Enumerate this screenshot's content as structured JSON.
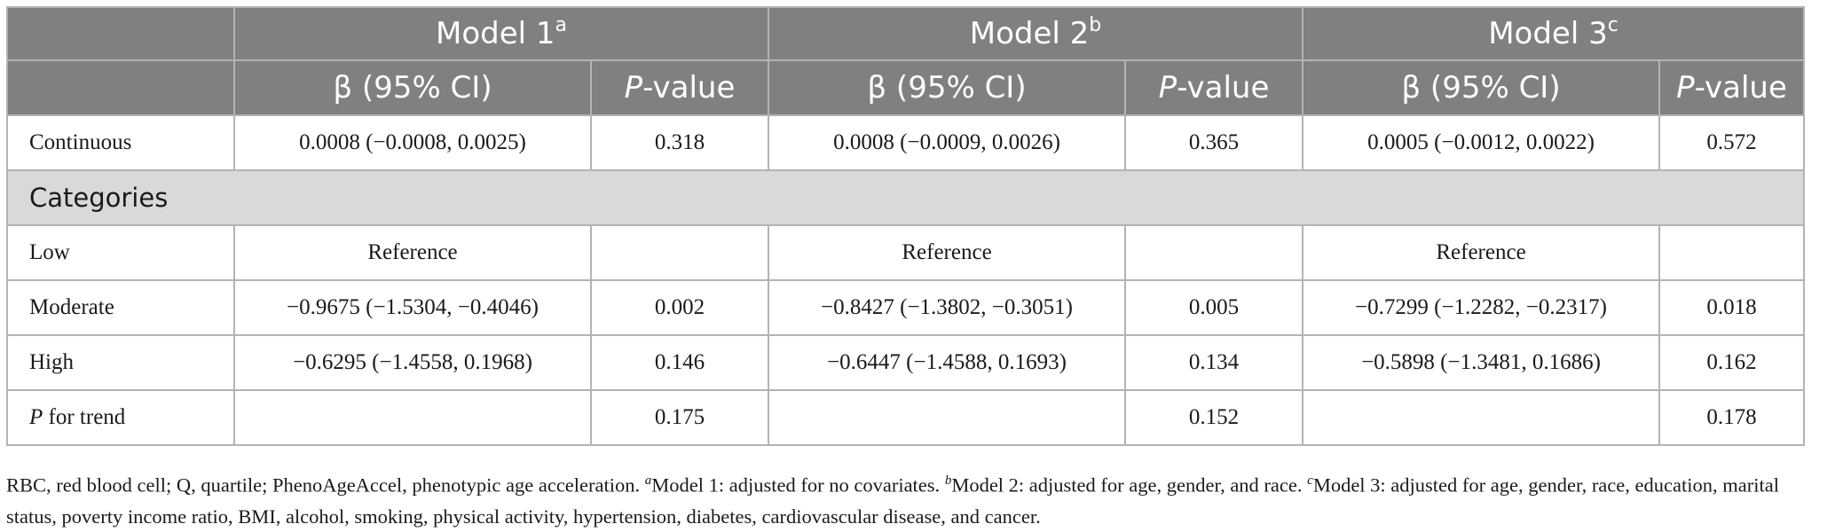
{
  "header": {
    "models": [
      {
        "label": "Model 1",
        "sup": "a"
      },
      {
        "label": "Model 2",
        "sup": "b"
      },
      {
        "label": "Model 3",
        "sup": "c"
      }
    ],
    "beta_label": "β (95% CI)",
    "p_label_italic": "P",
    "p_label_rest": "-value"
  },
  "rows": {
    "continuous": {
      "label": "Continuous",
      "cells": [
        "0.0008 (−0.0008, 0.0025)",
        "0.318",
        "0.0008 (−0.0009, 0.0026)",
        "0.365",
        "0.0005 (−0.0012, 0.0022)",
        "0.572"
      ]
    },
    "categories_label": "Categories",
    "low": {
      "label": "Low",
      "cells": [
        "Reference",
        "",
        "Reference",
        "",
        "Reference",
        ""
      ]
    },
    "moderate": {
      "label": "Moderate",
      "cells": [
        "−0.9675 (−1.5304, −0.4046)",
        "0.002",
        "−0.8427 (−1.3802, −0.3051)",
        "0.005",
        "−0.7299 (−1.2282, −0.2317)",
        "0.018"
      ]
    },
    "high": {
      "label": "High",
      "cells": [
        "−0.6295 (−1.4558, 0.1968)",
        "0.146",
        "−0.6447 (−1.4588, 0.1693)",
        "0.134",
        "−0.5898 (−1.3481, 0.1686)",
        "0.162"
      ]
    },
    "trend": {
      "label_italic": "P",
      "label_rest": " for trend",
      "cells": [
        "",
        "0.175",
        "",
        "0.152",
        "",
        "0.178"
      ]
    }
  },
  "footnote": {
    "abbrev": "RBC, red blood cell; Q, quartile; PhenoAgeAccel, phenotypic age acceleration. ",
    "notes": [
      {
        "sup": "a",
        "text": "Model 1: adjusted for no covariates. "
      },
      {
        "sup": "b",
        "text": "Model 2: adjusted for age, gender, and race. "
      },
      {
        "sup": "c",
        "text": "Model 3: adjusted for age, gender, race, education, marital status, poverty income ratio, BMI, alcohol, smoking, physical activity, hypertension, diabetes, cardiovascular disease, and cancer."
      }
    ]
  }
}
